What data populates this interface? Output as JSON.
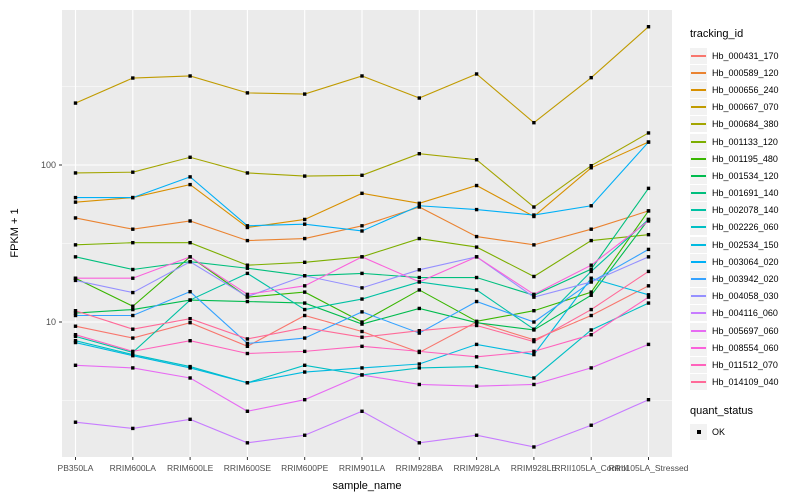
{
  "chart_data": {
    "type": "line",
    "title": "",
    "xlabel": "sample_name",
    "ylabel": "FPKM + 1",
    "yscale": "log10",
    "y_ticks": [
      10,
      100
    ],
    "y_minor_ticks": [
      3.162,
      31.62,
      316.2
    ],
    "ylim_log_bottom": 1.45,
    "grid": "on",
    "panel_bg": "#EBEBEB",
    "grid_color": "#FFFFFF",
    "tick_label_color": "#4D4D4D",
    "marker": "black-square",
    "legend": {
      "title": "tracking_id",
      "position": "right"
    },
    "quant_status": {
      "title": "quant_status",
      "items": [
        {
          "label": "OK",
          "marker": "black-square"
        }
      ]
    },
    "categories": [
      "PB350LA",
      "RRIM600LA",
      "RRIM600LE",
      "RRIM600SE",
      "RRIM600PE",
      "RRIM901LA",
      "RRIM928BA",
      "RRIM928LA",
      "RRIM928LE",
      "RRII105LA_Control",
      "RRII105LA_Stressed"
    ],
    "series": [
      {
        "name": "Hb_000431_170",
        "color": "#F8766D",
        "values": [
          9.4,
          7.9,
          9.9,
          7.0,
          11.0,
          8.7,
          6.4,
          10.0,
          7.7,
          11.0,
          17.0
        ]
      },
      {
        "name": "Hb_000589_120",
        "color": "#EA8331",
        "values": [
          46,
          39,
          44,
          33,
          34,
          41,
          54,
          35,
          31,
          39,
          51
        ]
      },
      {
        "name": "Hb_000656_240",
        "color": "#D89000",
        "values": [
          58,
          62,
          75,
          40,
          45,
          66,
          57,
          74,
          47,
          96,
          140
        ]
      },
      {
        "name": "Hb_000667_070",
        "color": "#C09B00",
        "values": [
          248,
          358,
          369,
          288,
          283,
          369,
          267,
          380,
          186,
          360,
          760
        ]
      },
      {
        "name": "Hb_000684_380",
        "color": "#A3A500",
        "values": [
          89,
          90,
          112,
          89,
          85,
          86,
          118,
          108,
          54,
          99,
          160
        ]
      },
      {
        "name": "Hb_001133_120",
        "color": "#7CAE00",
        "values": [
          31,
          32,
          32,
          23,
          24,
          26,
          34,
          30,
          19.5,
          33,
          36
        ]
      },
      {
        "name": "Hb_001195_480",
        "color": "#39B600",
        "values": [
          19,
          12.6,
          26,
          14.4,
          15.5,
          10,
          16,
          10.1,
          11.8,
          15.5,
          51
        ]
      },
      {
        "name": "Hb_001534_120",
        "color": "#00BB4E",
        "values": [
          11.4,
          12,
          13.8,
          13.5,
          13.2,
          9.7,
          12.2,
          9.9,
          8.9,
          14.8,
          45
        ]
      },
      {
        "name": "Hb_001691_140",
        "color": "#00BF7D",
        "values": [
          26,
          21.6,
          24.2,
          22,
          19.7,
          20.4,
          19.2,
          19.2,
          14.8,
          21.7,
          71
        ]
      },
      {
        "name": "Hb_002078_140",
        "color": "#00C1A3",
        "values": [
          8.1,
          6.4,
          13.8,
          20.4,
          12,
          14,
          18,
          16,
          9.0,
          21,
          45
        ]
      },
      {
        "name": "Hb_002226_060",
        "color": "#00BFC4",
        "values": [
          7.6,
          6.2,
          5.2,
          4.1,
          5.3,
          4.6,
          5.1,
          5.2,
          4.4,
          8.9,
          13.2
        ]
      },
      {
        "name": "Hb_002534_150",
        "color": "#00BAE0",
        "values": [
          7.4,
          6.1,
          5.1,
          4.1,
          4.8,
          5.1,
          5.4,
          7.2,
          6.2,
          19,
          14.9
        ]
      },
      {
        "name": "Hb_003064_020",
        "color": "#00B0F6",
        "values": [
          62,
          62,
          84,
          41,
          42,
          38,
          55,
          52,
          48,
          55,
          140
        ]
      },
      {
        "name": "Hb_003942_020",
        "color": "#35A2FF",
        "values": [
          11,
          11,
          15.6,
          7.3,
          7.9,
          11.6,
          8.5,
          13.5,
          10,
          18,
          29
        ]
      },
      {
        "name": "Hb_004058_030",
        "color": "#9590FF",
        "values": [
          18.4,
          15.4,
          24.2,
          14.5,
          19.7,
          16.5,
          21.5,
          26,
          14.4,
          18,
          26
        ]
      },
      {
        "name": "Hb_004116_060",
        "color": "#C77CFF",
        "values": [
          2.3,
          2.1,
          2.4,
          1.7,
          1.9,
          2.7,
          1.7,
          1.9,
          1.6,
          2.2,
          3.2
        ]
      },
      {
        "name": "Hb_005697_060",
        "color": "#E76BF3",
        "values": [
          5.3,
          5.1,
          4.4,
          2.7,
          3.2,
          4.6,
          4.0,
          3.9,
          4.0,
          5.1,
          7.2
        ]
      },
      {
        "name": "Hb_008554_060",
        "color": "#FA62DB",
        "values": [
          19,
          19,
          26,
          15,
          17,
          26,
          18,
          26,
          15,
          23,
          44
        ]
      },
      {
        "name": "Hb_011512_070",
        "color": "#FF62BC",
        "values": [
          8.3,
          6.5,
          7.6,
          6.3,
          6.5,
          7.0,
          6.5,
          6.0,
          6.5,
          8.3,
          14.4
        ]
      },
      {
        "name": "Hb_014109_040",
        "color": "#FF6A98",
        "values": [
          11.8,
          9.0,
          10.5,
          7.8,
          9.2,
          8.0,
          8.8,
          9.5,
          7.5,
          12.0,
          21.0
        ]
      }
    ]
  }
}
